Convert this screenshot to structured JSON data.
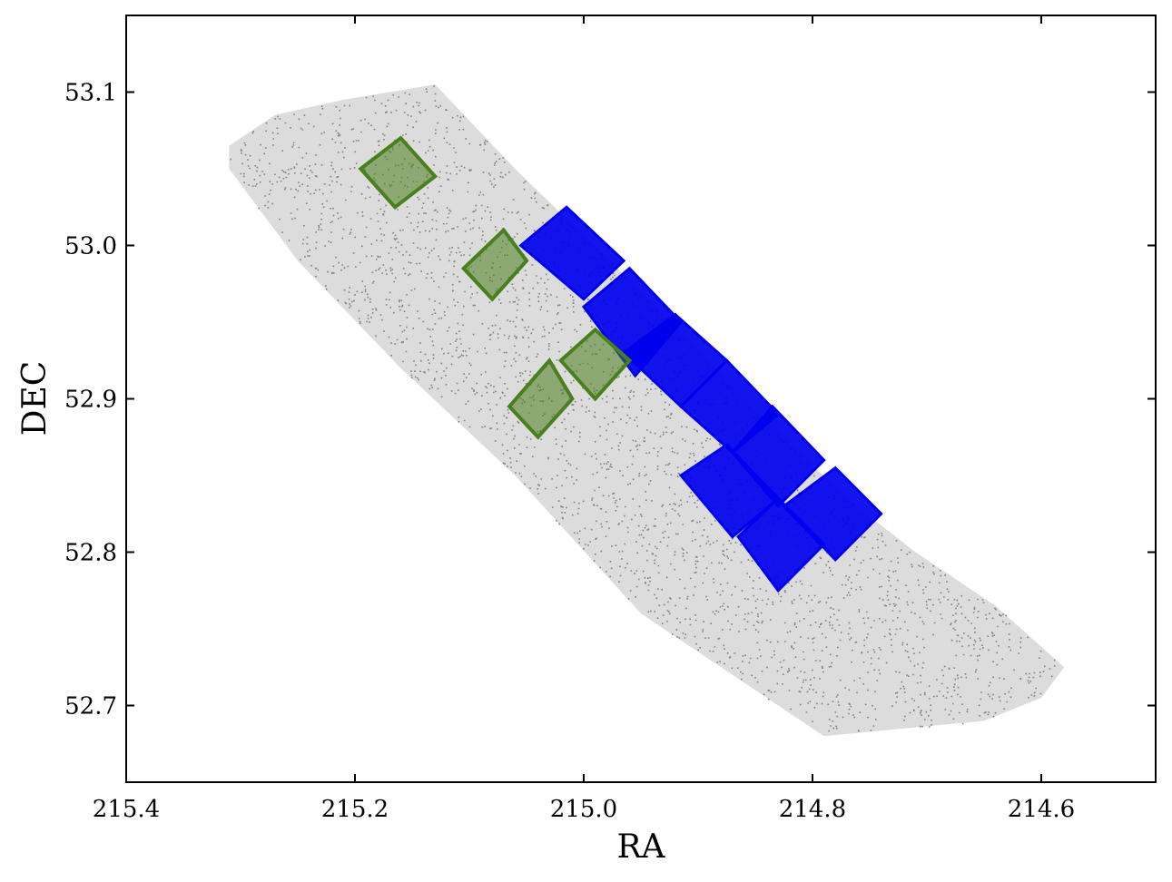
{
  "chart_data": {
    "type": "scatter",
    "title": "",
    "xlabel": "RA",
    "ylabel": "DEC",
    "xlim": [
      215.4,
      214.5
    ],
    "ylim": [
      52.65,
      53.15
    ],
    "x_inverted": true,
    "xticks": [
      215.4,
      215.2,
      215.0,
      214.8,
      214.6
    ],
    "xtick_labels": [
      "215.4",
      "215.2",
      "215.0",
      "214.8",
      "214.6"
    ],
    "yticks": [
      52.7,
      52.8,
      52.9,
      53.0,
      53.1
    ],
    "ytick_labels": [
      "52.7",
      "52.8",
      "52.9",
      "53.0",
      "53.1"
    ],
    "grid": false,
    "tick_direction": "in",
    "colors": {
      "points": "#808080",
      "blue_fields": "#0000ee",
      "green_fields": "#4a7f1e"
    },
    "survey_region": {
      "color": "gray",
      "polygon": [
        [
          215.31,
          53.065
        ],
        [
          215.27,
          53.085
        ],
        [
          215.21,
          53.095
        ],
        [
          215.13,
          53.105
        ],
        [
          215.06,
          53.05
        ],
        [
          214.95,
          52.97
        ],
        [
          214.86,
          52.9
        ],
        [
          214.77,
          52.835
        ],
        [
          214.71,
          52.8
        ],
        [
          214.64,
          52.765
        ],
        [
          214.58,
          52.725
        ],
        [
          214.6,
          52.705
        ],
        [
          214.65,
          52.69
        ],
        [
          214.72,
          52.685
        ],
        [
          214.79,
          52.68
        ],
        [
          214.95,
          52.76
        ],
        [
          215.06,
          52.85
        ],
        [
          215.16,
          52.92
        ],
        [
          215.25,
          52.99
        ],
        [
          215.29,
          53.03
        ],
        [
          215.31,
          53.05
        ]
      ]
    },
    "blue_fields": [
      [
        [
          215.015,
          53.025
        ],
        [
          214.965,
          52.99
        ],
        [
          215.0,
          52.965
        ],
        [
          215.055,
          53.0
        ]
      ],
      [
        [
          214.96,
          52.985
        ],
        [
          214.915,
          52.95
        ],
        [
          214.955,
          52.915
        ],
        [
          215.0,
          52.96
        ]
      ],
      [
        [
          214.92,
          52.955
        ],
        [
          214.875,
          52.925
        ],
        [
          214.915,
          52.895
        ],
        [
          214.965,
          52.93
        ]
      ],
      [
        [
          214.875,
          52.925
        ],
        [
          214.83,
          52.89
        ],
        [
          214.87,
          52.865
        ],
        [
          214.915,
          52.895
        ]
      ],
      [
        [
          214.835,
          52.895
        ],
        [
          214.79,
          52.86
        ],
        [
          214.83,
          52.83
        ],
        [
          214.87,
          52.865
        ]
      ],
      [
        [
          214.875,
          52.87
        ],
        [
          214.83,
          52.835
        ],
        [
          214.87,
          52.81
        ],
        [
          214.915,
          52.85
        ]
      ],
      [
        [
          214.83,
          52.835
        ],
        [
          214.79,
          52.805
        ],
        [
          214.83,
          52.775
        ],
        [
          214.865,
          52.81
        ]
      ],
      [
        [
          214.78,
          52.855
        ],
        [
          214.74,
          52.825
        ],
        [
          214.78,
          52.795
        ],
        [
          214.825,
          52.83
        ]
      ]
    ],
    "green_fields": [
      [
        [
          215.16,
          53.07
        ],
        [
          215.13,
          53.045
        ],
        [
          215.165,
          53.025
        ],
        [
          215.195,
          53.05
        ]
      ],
      [
        [
          215.07,
          53.01
        ],
        [
          215.05,
          52.99
        ],
        [
          215.08,
          52.965
        ],
        [
          215.105,
          52.985
        ]
      ],
      [
        [
          214.99,
          52.945
        ],
        [
          214.96,
          52.925
        ],
        [
          214.99,
          52.9
        ],
        [
          215.02,
          52.925
        ]
      ],
      [
        [
          215.03,
          52.925
        ],
        [
          215.01,
          52.9
        ],
        [
          215.04,
          52.875
        ],
        [
          215.065,
          52.895
        ]
      ]
    ]
  }
}
